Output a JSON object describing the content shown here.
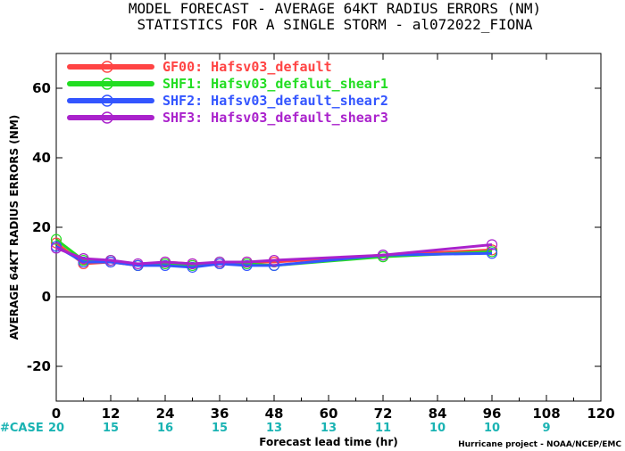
{
  "title_line1": "MODEL FORECAST - AVERAGE 64KT RADIUS ERRORS (NM)",
  "title_line2": "STATISTICS FOR A SINGLE STORM - al072022_FIONA",
  "credit": "Hurricane project - NOAA/NCEP/EMC",
  "case_label": "#CASE",
  "case_color": "#1ab3b3",
  "chart_data": {
    "type": "line",
    "xlabel": "Forecast lead time (hr)",
    "ylabel": "AVERAGE 64KT RADIUS ERRORS (NM)",
    "xlim": [
      0,
      120
    ],
    "ylim": [
      -30,
      70
    ],
    "x_ticks": [
      0,
      12,
      24,
      36,
      48,
      60,
      72,
      84,
      96,
      108,
      120
    ],
    "y_ticks": [
      -20,
      0,
      20,
      40,
      60
    ],
    "x_tick_labels": [
      "0",
      "12",
      "24",
      "36",
      "48",
      "60",
      "72",
      "84",
      "96",
      "108",
      "120"
    ],
    "y_tick_labels": [
      "-20",
      "0",
      "20",
      "40",
      "60"
    ],
    "grid": false,
    "zero_line": true,
    "legend_position": "top-left",
    "cases": {
      "x": [
        0,
        12,
        24,
        36,
        48,
        60,
        72,
        84,
        96,
        108
      ],
      "labels": [
        "20",
        "15",
        "16",
        "15",
        "13",
        "13",
        "11",
        "10",
        "10",
        "9"
      ]
    },
    "series": [
      {
        "name": "GF00: Hafsv03_default",
        "color": "#ff4444",
        "x": [
          0,
          6,
          12,
          18,
          24,
          30,
          36,
          42,
          48,
          72,
          96
        ],
        "y": [
          15.5,
          9.5,
          10.0,
          9.0,
          10.0,
          9.5,
          9.5,
          10.0,
          10.0,
          12.0,
          13.5
        ]
      },
      {
        "name": "SHF1: Hafsv03_defalut_shear1",
        "color": "#22dd22",
        "x": [
          0,
          6,
          12,
          18,
          24,
          30,
          36,
          42,
          48,
          72,
          96
        ],
        "y": [
          16.5,
          10.5,
          10.5,
          9.0,
          9.5,
          9.0,
          10.0,
          9.5,
          9.0,
          11.5,
          13.0
        ]
      },
      {
        "name": "SHF2: Hafsv03_default_shear2",
        "color": "#3355ff",
        "x": [
          0,
          6,
          12,
          18,
          24,
          30,
          36,
          42,
          48,
          72,
          96
        ],
        "y": [
          14.5,
          10.0,
          10.0,
          9.0,
          9.0,
          8.5,
          9.5,
          9.0,
          9.0,
          12.0,
          12.5
        ]
      },
      {
        "name": "SHF3: Hafsv03_default_shear3",
        "color": "#aa22cc",
        "x": [
          0,
          6,
          12,
          18,
          24,
          30,
          36,
          42,
          48,
          72,
          96
        ],
        "y": [
          14.0,
          11.0,
          10.5,
          9.5,
          10.0,
          9.5,
          10.0,
          10.0,
          10.5,
          12.0,
          15.0
        ]
      }
    ]
  }
}
